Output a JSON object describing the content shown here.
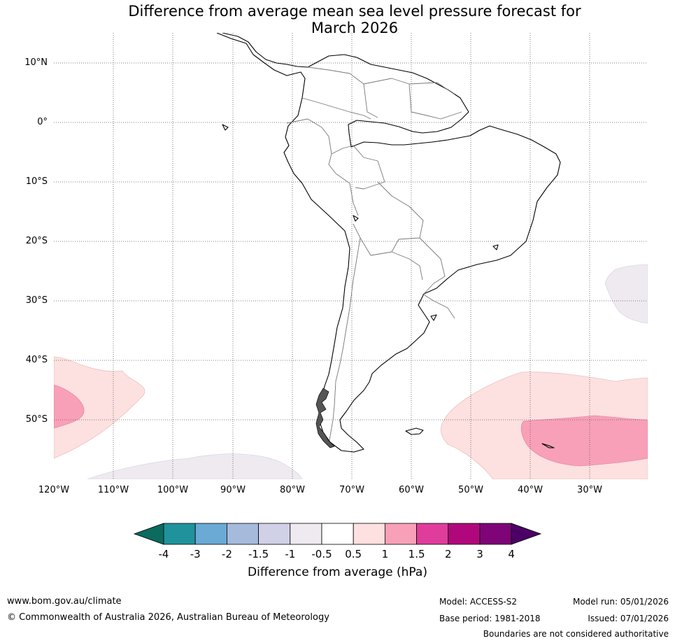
{
  "title": {
    "line1": "Difference from average mean sea level pressure forecast for",
    "line2": "March 2026"
  },
  "map": {
    "lat_ticks": [
      "10°N",
      "0°",
      "10°S",
      "20°S",
      "30°S",
      "40°S",
      "50°S"
    ],
    "lon_ticks": [
      "120°W",
      "110°W",
      "100°W",
      "90°W",
      "80°W",
      "70°W",
      "60°W",
      "50°W",
      "40°W",
      "30°W"
    ]
  },
  "colorbar": {
    "title": "Difference from average (hPa)",
    "tick_labels": [
      "-4",
      "-3",
      "-2",
      "-1.5",
      "-1",
      "-0.5",
      "0.5",
      "1",
      "1.5",
      "2",
      "3",
      "4"
    ],
    "colors": {
      "below_min": "#0b6b5e",
      "bins": [
        "#1f929c",
        "#6aaad4",
        "#a6badc",
        "#d0d0e6",
        "#eeeaf0",
        "#ffffff",
        "#fde0e0",
        "#f8a0b8",
        "#e03c9c",
        "#b0087c",
        "#7e0478"
      ],
      "above_max": "#4c0066"
    }
  },
  "footer": {
    "website": "www.bom.gov.au/climate",
    "copyright": "© Commonwealth of Australia 2026, Australian Bureau of Meteorology",
    "model": "Model: ACCESS-S2",
    "base_period": "Base period: 1981-2018",
    "model_run": "Model run: 05/01/2026",
    "issued": "Issued: 07/01/2026",
    "disclaimer": "Boundaries are not considered authoritative"
  }
}
